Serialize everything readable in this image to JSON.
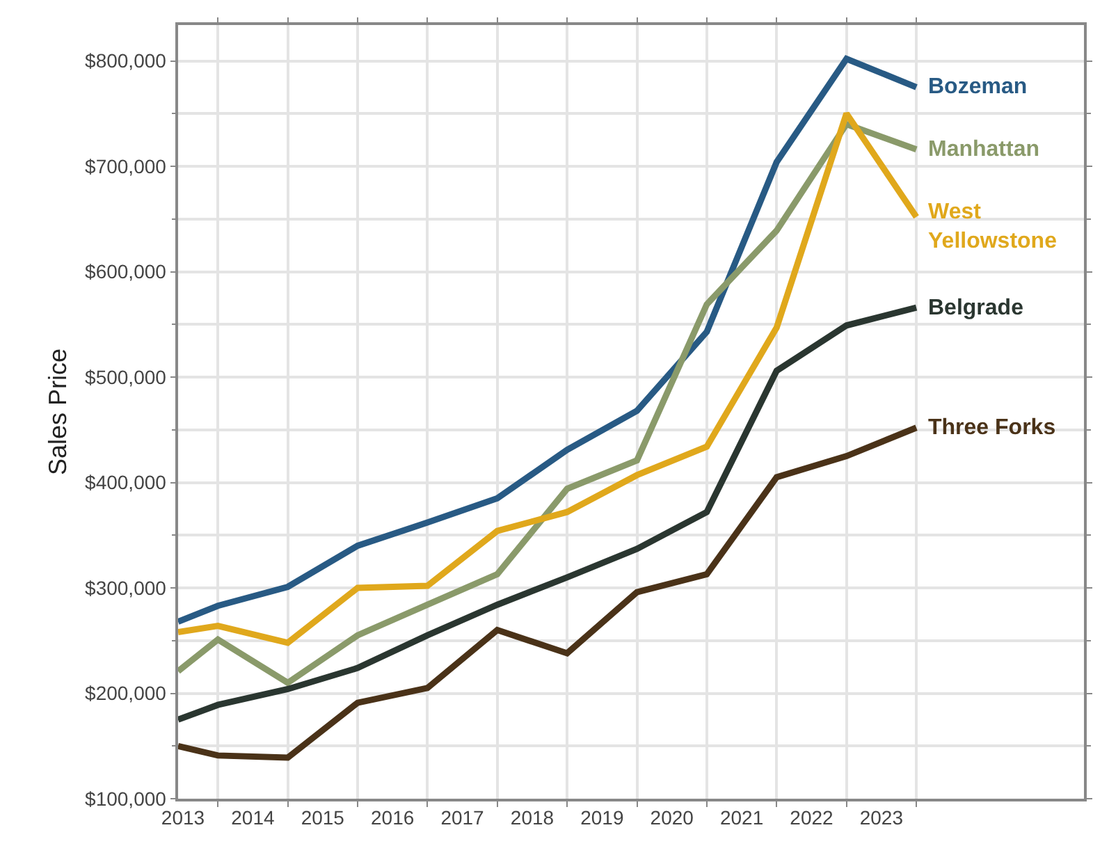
{
  "chart_data": {
    "type": "line",
    "ylabel": "Sales Price",
    "x": [
      2013.43,
      2014,
      2015,
      2016,
      2017,
      2018,
      2019,
      2020,
      2021,
      2022,
      2023,
      2024
    ],
    "series": [
      {
        "name": "Bozeman",
        "color": "#285a84",
        "values": [
          268000,
          283000,
          301000,
          340000,
          362000,
          385000,
          431000,
          468000,
          543000,
          704000,
          802000,
          775000
        ]
      },
      {
        "name": "Manhattan",
        "color": "#8a9a6a",
        "values": [
          221000,
          251000,
          210000,
          255000,
          284000,
          313000,
          394000,
          421000,
          569000,
          639000,
          740000,
          716000
        ]
      },
      {
        "name": "West Yellowstone",
        "color": "#e0a81c",
        "values": [
          258000,
          264000,
          248000,
          300000,
          302000,
          354000,
          372000,
          407000,
          434000,
          547000,
          750000,
          652000
        ]
      },
      {
        "name": "Belgrade",
        "color": "#2a3630",
        "values": [
          175000,
          189000,
          204000,
          224000,
          255000,
          284000,
          310000,
          337000,
          372000,
          506000,
          549000,
          566000
        ]
      },
      {
        "name": "Three Forks",
        "color": "#4a3218",
        "values": [
          150000,
          141000,
          139000,
          191000,
          205000,
          260000,
          238000,
          296000,
          313000,
          405000,
          425000,
          452000
        ]
      }
    ],
    "xlim": [
      2013.43,
      2026.4
    ],
    "xticks": [
      {
        "value": 2013.5,
        "label": "2013"
      },
      {
        "value": 2014.5,
        "label": "2014"
      },
      {
        "value": 2015.5,
        "label": "2015"
      },
      {
        "value": 2016.5,
        "label": "2016"
      },
      {
        "value": 2017.5,
        "label": "2017"
      },
      {
        "value": 2018.5,
        "label": "2018"
      },
      {
        "value": 2019.5,
        "label": "2019"
      },
      {
        "value": 2020.5,
        "label": "2020"
      },
      {
        "value": 2021.5,
        "label": "2021"
      },
      {
        "value": 2022.5,
        "label": "2022"
      },
      {
        "value": 2023.5,
        "label": "2023"
      },
      {
        "value": 2014,
        "label": null
      },
      {
        "value": 2015,
        "label": null
      },
      {
        "value": 2016,
        "label": null
      },
      {
        "value": 2017,
        "label": null
      },
      {
        "value": 2018,
        "label": null
      },
      {
        "value": 2019,
        "label": null
      },
      {
        "value": 2020,
        "label": null
      },
      {
        "value": 2021,
        "label": null
      },
      {
        "value": 2022,
        "label": null
      },
      {
        "value": 2023,
        "label": null
      },
      {
        "value": 2024,
        "label": null
      }
    ],
    "ylim": [
      100000,
      834000
    ],
    "yticks": [
      {
        "value": 100000,
        "label": "$100,000"
      },
      {
        "value": 200000,
        "label": "$200,000"
      },
      {
        "value": 300000,
        "label": "$300,000"
      },
      {
        "value": 400000,
        "label": "$400,000"
      },
      {
        "value": 500000,
        "label": "$500,000"
      },
      {
        "value": 600000,
        "label": "$600,000"
      },
      {
        "value": 700000,
        "label": "$700,000"
      },
      {
        "value": 800000,
        "label": "$800,000"
      },
      {
        "value": 150000,
        "label": null
      },
      {
        "value": 250000,
        "label": null
      },
      {
        "value": 350000,
        "label": null
      },
      {
        "value": 450000,
        "label": null
      },
      {
        "value": 550000,
        "label": null
      },
      {
        "value": 650000,
        "label": null
      },
      {
        "value": 750000,
        "label": null
      }
    ],
    "grid": true,
    "legend": false,
    "marker": "none",
    "line_style": "solid"
  }
}
